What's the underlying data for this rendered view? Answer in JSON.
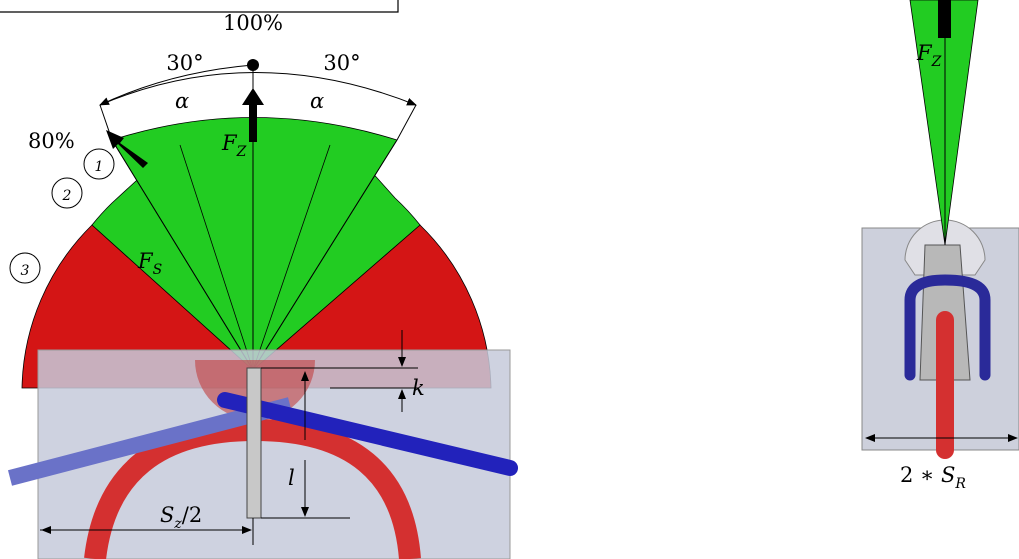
{
  "labels": {
    "top_percent": "100%",
    "angle_left": "30°",
    "angle_right": "30°",
    "alpha_left": "α",
    "alpha_right": "α",
    "fz_left": {
      "base": "F",
      "sub": "Z"
    },
    "side_percent": "80%",
    "circle_1": "1",
    "circle_2": "2",
    "circle_3": "3",
    "fs": {
      "base": "F",
      "sub": "S"
    },
    "k": "k",
    "l": "l",
    "sz": {
      "base": "S",
      "sub": "z",
      "rest": "/2"
    },
    "fz_right": {
      "base": "F",
      "sub": "Z"
    },
    "sr": {
      "prefix": "2 ∗ ",
      "base": "S",
      "sub": "R"
    }
  }
}
